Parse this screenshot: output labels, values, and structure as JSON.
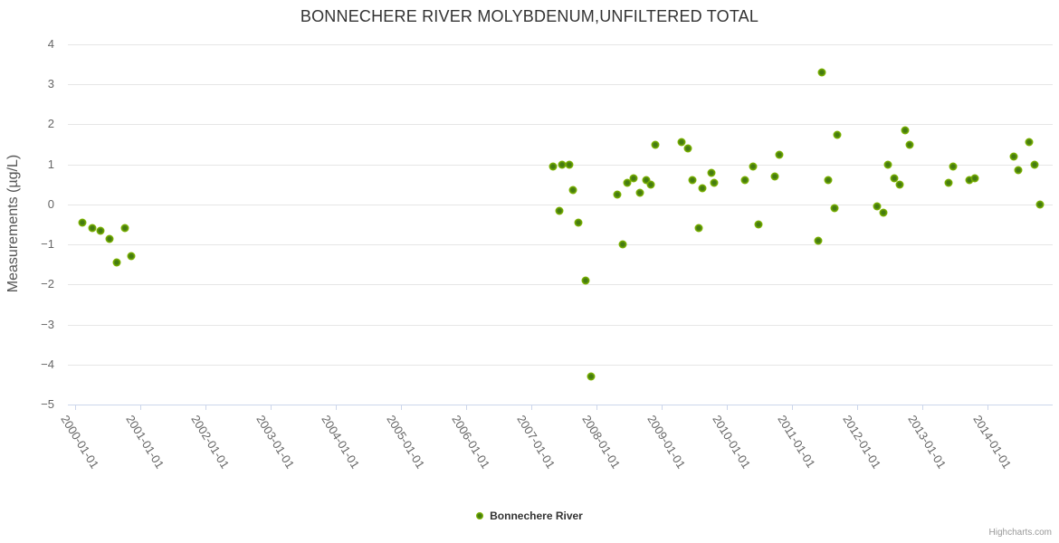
{
  "title": "BONNECHERE RIVER MOLYBDENUM,UNFILTERED TOTAL",
  "credit": "Highcharts.com",
  "legend": {
    "series_label": "Bonnechere River"
  },
  "colors": {
    "title_text": "#333333",
    "axis_label_text": "#666666",
    "gridline": "#e6e6e6",
    "x_axis_line": "#ccd6eb",
    "marker_outer": "#7db300",
    "marker_inner": "#457c10",
    "credit_text": "#999999"
  },
  "chart_data": {
    "type": "scatter",
    "title": "BONNECHERE RIVER MOLYBDENUM,UNFILTERED TOTAL",
    "xlabel": "",
    "ylabel": "Measurements (µg/L)",
    "ylim": [
      -5,
      4
    ],
    "y_ticks": [
      4,
      3,
      2,
      1,
      0,
      -1,
      -2,
      -3,
      -4,
      -5
    ],
    "x_ticks": [
      "2000-01-01",
      "2001-01-01",
      "2002-01-01",
      "2003-01-01",
      "2004-01-01",
      "2005-01-01",
      "2006-01-01",
      "2007-01-01",
      "2008-01-01",
      "2009-01-01",
      "2010-01-01",
      "2011-01-01",
      "2012-01-01",
      "2013-01-01",
      "2014-01-01"
    ],
    "x_range_years": [
      1999.9,
      2015.0
    ],
    "grid": "horizontal",
    "legend_position": "bottom-center",
    "series": [
      {
        "name": "Bonnechere River",
        "color": "#7db300",
        "points": [
          [
            2000.11,
            -0.45
          ],
          [
            2000.27,
            -0.6
          ],
          [
            2000.39,
            -0.65
          ],
          [
            2000.53,
            -0.85
          ],
          [
            2000.64,
            -1.45
          ],
          [
            2000.77,
            -0.6
          ],
          [
            2000.86,
            -1.3
          ],
          [
            2007.33,
            0.95
          ],
          [
            2007.43,
            -0.15
          ],
          [
            2007.47,
            1.0
          ],
          [
            2007.58,
            1.0
          ],
          [
            2007.64,
            0.35
          ],
          [
            2007.72,
            -0.45
          ],
          [
            2007.83,
            -1.9
          ],
          [
            2007.92,
            -4.3
          ],
          [
            2008.32,
            0.25
          ],
          [
            2008.4,
            -1.0
          ],
          [
            2008.47,
            0.55
          ],
          [
            2008.57,
            0.65
          ],
          [
            2008.67,
            0.3
          ],
          [
            2008.76,
            0.6
          ],
          [
            2008.83,
            0.5
          ],
          [
            2008.9,
            1.5
          ],
          [
            2009.3,
            1.55
          ],
          [
            2009.4,
            1.4
          ],
          [
            2009.47,
            0.6
          ],
          [
            2009.57,
            -0.6
          ],
          [
            2009.63,
            0.4
          ],
          [
            2009.76,
            0.8
          ],
          [
            2009.8,
            0.55
          ],
          [
            2010.28,
            0.6
          ],
          [
            2010.4,
            0.95
          ],
          [
            2010.49,
            -0.5
          ],
          [
            2010.74,
            0.7
          ],
          [
            2010.8,
            1.25
          ],
          [
            2011.4,
            -0.9
          ],
          [
            2011.46,
            3.3
          ],
          [
            2011.56,
            0.6
          ],
          [
            2011.65,
            -0.1
          ],
          [
            2011.7,
            1.75
          ],
          [
            2012.3,
            -0.05
          ],
          [
            2012.4,
            -0.2
          ],
          [
            2012.47,
            1.0
          ],
          [
            2012.57,
            0.65
          ],
          [
            2012.65,
            0.5
          ],
          [
            2012.74,
            1.85
          ],
          [
            2012.8,
            1.5
          ],
          [
            2013.4,
            0.55
          ],
          [
            2013.47,
            0.95
          ],
          [
            2013.72,
            0.6
          ],
          [
            2013.8,
            0.65
          ],
          [
            2014.4,
            1.2
          ],
          [
            2014.47,
            0.85
          ],
          [
            2014.64,
            1.55
          ],
          [
            2014.72,
            1.0
          ],
          [
            2014.8,
            0.0
          ]
        ]
      }
    ]
  }
}
